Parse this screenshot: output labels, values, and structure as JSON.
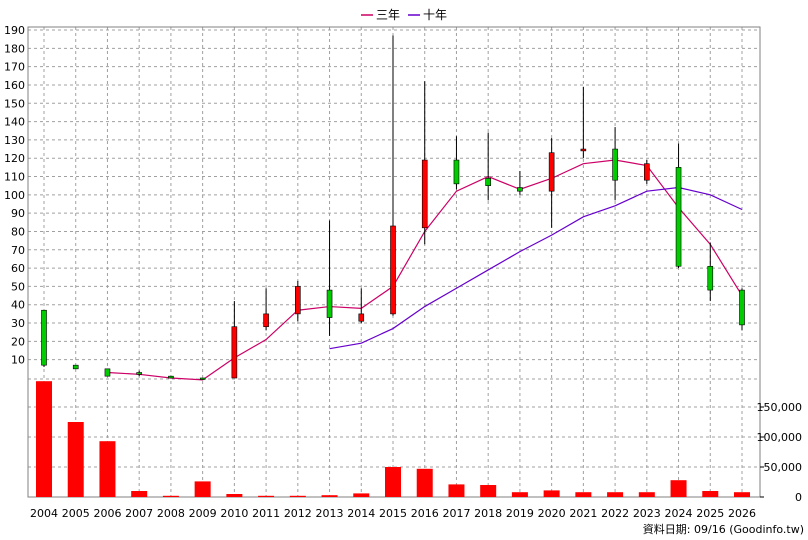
{
  "chart_data": {
    "type": "candlestick",
    "legend": [
      "三年",
      "十年"
    ],
    "legend_placement": "top-center",
    "x": [
      "2004",
      "2005",
      "2006",
      "2007",
      "2008",
      "2009",
      "2010",
      "2011",
      "2012",
      "2013",
      "2014",
      "2015",
      "2016",
      "2017",
      "2018",
      "2019",
      "2020",
      "2021",
      "2022",
      "2023",
      "2024",
      "2025",
      "2026"
    ],
    "price_axis": {
      "min": 0,
      "max": 190,
      "ticks": [
        10,
        20,
        30,
        40,
        50,
        60,
        70,
        80,
        90,
        100,
        110,
        120,
        130,
        140,
        150,
        160,
        170,
        180,
        190
      ]
    },
    "volume_axis": {
      "min": 0,
      "ticks": [
        0,
        50000,
        100000,
        150000
      ],
      "tick_labels": [
        "0",
        "50,000",
        "100,000",
        "150,000"
      ]
    },
    "candles": [
      {
        "open": 37,
        "high": 37,
        "low": 6,
        "close": 7,
        "color": "green"
      },
      {
        "open": 7,
        "high": 7,
        "low": 5,
        "close": 5,
        "color": "green"
      },
      {
        "open": 5,
        "high": 5,
        "low": 1,
        "close": 1,
        "color": "green"
      },
      {
        "open": 3,
        "high": 4,
        "low": 1,
        "close": 2,
        "color": "green"
      },
      {
        "open": 1,
        "high": 1,
        "low": 0,
        "close": 0,
        "color": "green"
      },
      {
        "open": 0,
        "high": 0,
        "low": 0,
        "close": 0,
        "color": "green"
      },
      {
        "open": 0,
        "high": 42,
        "low": 0,
        "close": 28,
        "color": "red"
      },
      {
        "open": 28,
        "high": 49,
        "low": 26,
        "close": 35,
        "color": "red"
      },
      {
        "open": 35,
        "high": 53,
        "low": 31,
        "close": 50,
        "color": "red"
      },
      {
        "open": 48,
        "high": 86,
        "low": 23,
        "close": 33,
        "color": "green"
      },
      {
        "open": 31,
        "high": 49,
        "low": 30,
        "close": 35,
        "color": "red"
      },
      {
        "open": 35,
        "high": 187,
        "low": 34,
        "close": 83,
        "color": "red"
      },
      {
        "open": 82,
        "high": 162,
        "low": 73,
        "close": 119,
        "color": "red"
      },
      {
        "open": 119,
        "high": 132,
        "low": 103,
        "close": 106,
        "color": "green"
      },
      {
        "open": 109,
        "high": 134,
        "low": 97,
        "close": 105,
        "color": "green"
      },
      {
        "open": 102,
        "high": 113,
        "low": 100,
        "close": 104,
        "color": "green"
      },
      {
        "open": 102,
        "high": 131,
        "low": 82,
        "close": 123,
        "color": "red"
      },
      {
        "open": 125,
        "high": 159,
        "low": 120,
        "close": 124,
        "color": "red"
      },
      {
        "open": 125,
        "high": 137,
        "low": 97,
        "close": 108,
        "color": "green"
      },
      {
        "open": 108,
        "high": 119,
        "low": 106,
        "close": 117,
        "color": "red"
      },
      {
        "open": 115,
        "high": 128,
        "low": 60,
        "close": 61,
        "color": "green"
      },
      {
        "open": 61,
        "high": 74,
        "low": 42,
        "close": 48,
        "color": "green"
      },
      {
        "open": 48,
        "high": 49,
        "low": 26,
        "close": 29,
        "color": "green"
      }
    ],
    "series": [
      {
        "name": "三年",
        "color": "#cc0066",
        "values": [
          null,
          null,
          3,
          2,
          0,
          -1,
          11,
          21,
          37,
          39,
          38,
          50,
          80,
          102,
          110,
          103,
          109,
          117,
          119,
          116,
          93,
          73,
          45
        ]
      },
      {
        "name": "十年",
        "color": "#6600cc",
        "values": [
          null,
          null,
          null,
          null,
          null,
          null,
          null,
          null,
          null,
          16,
          19,
          27,
          39,
          49,
          59,
          69,
          78,
          88,
          94,
          102,
          104,
          100,
          92
        ]
      }
    ],
    "volume": [
      193000,
      125000,
      93000,
      10000,
      2000,
      26000,
      5000,
      2000,
      2000,
      3000,
      6000,
      50000,
      47000,
      21000,
      20000,
      8000,
      11000,
      8000,
      8000,
      8000,
      28000,
      10000,
      8000
    ],
    "volume_color": "#ff0000",
    "grid": true
  },
  "footer": {
    "source": "資料日期: 09/16 (Goodinfo.tw)"
  }
}
